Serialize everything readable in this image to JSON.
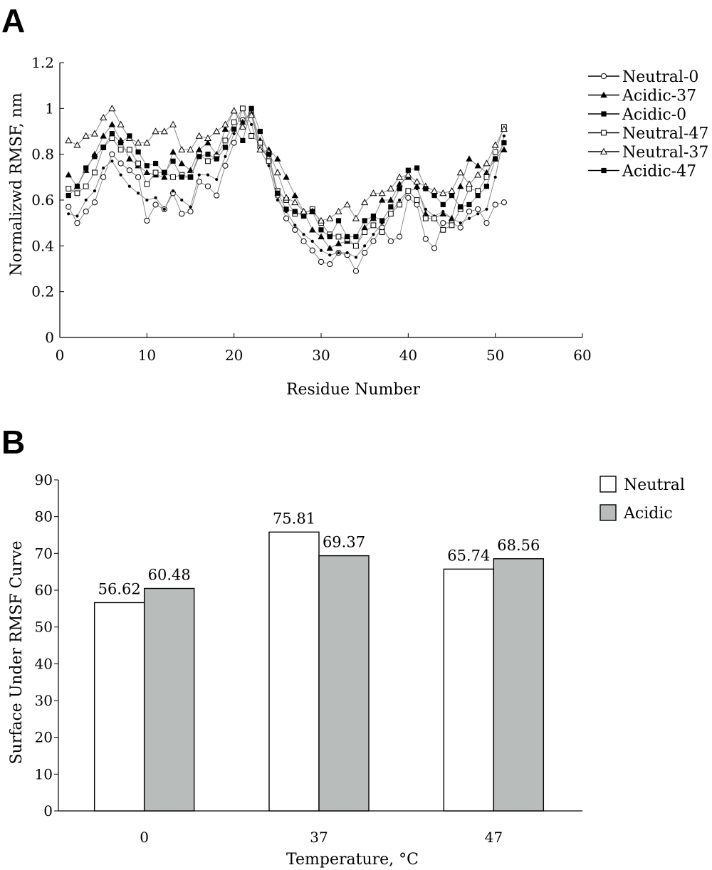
{
  "panels": {
    "a_label": "A",
    "b_label": "B"
  },
  "chart_data": [
    {
      "type": "line",
      "panel": "A",
      "xlabel": "Residue Number",
      "ylabel": "Normalizwd RMSF, nm",
      "xlim": [
        0,
        60
      ],
      "ylim": [
        0,
        1.2
      ],
      "x_ticks": [
        0,
        10,
        20,
        30,
        40,
        50,
        60
      ],
      "y_ticks": [
        0,
        0.2,
        0.4,
        0.6,
        0.8,
        1,
        1.2
      ],
      "y_tick_labels": [
        "0",
        "0.2",
        "0.4",
        "0.6",
        "0.8",
        "1",
        "1.2"
      ],
      "grid": false,
      "legend_position": "top-right",
      "x": [
        1,
        2,
        3,
        4,
        5,
        6,
        7,
        8,
        9,
        10,
        11,
        12,
        13,
        14,
        15,
        16,
        17,
        18,
        19,
        20,
        21,
        22,
        23,
        24,
        25,
        26,
        27,
        28,
        29,
        30,
        31,
        32,
        33,
        34,
        35,
        36,
        37,
        38,
        39,
        40,
        41,
        42,
        43,
        44,
        45,
        46,
        47,
        48,
        49,
        50,
        51
      ],
      "series": [
        {
          "name": "Neutral-0",
          "marker": "open-circle",
          "values": [
            0.57,
            0.5,
            0.55,
            0.59,
            0.7,
            0.8,
            0.76,
            0.73,
            0.7,
            0.51,
            0.58,
            0.56,
            0.63,
            0.54,
            0.55,
            0.68,
            0.66,
            0.62,
            0.75,
            0.85,
            0.95,
            0.98,
            0.83,
            0.78,
            0.62,
            0.52,
            0.47,
            0.42,
            0.38,
            0.33,
            0.32,
            0.37,
            0.36,
            0.29,
            0.37,
            0.42,
            0.48,
            0.42,
            0.44,
            0.61,
            0.58,
            0.43,
            0.39,
            0.5,
            0.5,
            0.48,
            0.55,
            0.56,
            0.5,
            0.58,
            0.59
          ]
        },
        {
          "name": "Acidic-37",
          "marker": "filled-triangle",
          "values": [
            0.71,
            0.66,
            0.73,
            0.8,
            0.88,
            0.93,
            0.86,
            0.78,
            0.75,
            0.72,
            0.71,
            0.7,
            0.81,
            0.76,
            0.73,
            0.82,
            0.85,
            0.8,
            0.91,
            0.99,
            0.94,
            0.98,
            0.86,
            0.82,
            0.78,
            0.7,
            0.62,
            0.55,
            0.47,
            0.44,
            0.39,
            0.41,
            0.42,
            0.4,
            0.48,
            0.52,
            0.6,
            0.6,
            0.67,
            0.7,
            0.66,
            0.54,
            0.52,
            0.54,
            0.52,
            0.66,
            0.78,
            0.75,
            0.72,
            0.78,
            0.82
          ]
        },
        {
          "name": "Acidic-0",
          "marker": "small-dot",
          "values": [
            0.54,
            0.53,
            0.6,
            0.64,
            0.74,
            0.77,
            0.71,
            0.66,
            0.63,
            0.6,
            0.61,
            0.56,
            0.64,
            0.6,
            0.57,
            0.71,
            0.71,
            0.69,
            0.79,
            0.89,
            1.0,
            0.93,
            0.82,
            0.75,
            0.6,
            0.55,
            0.49,
            0.45,
            0.42,
            0.38,
            0.36,
            0.37,
            0.37,
            0.35,
            0.4,
            0.45,
            0.5,
            0.54,
            0.6,
            0.64,
            0.65,
            0.56,
            0.53,
            0.55,
            0.52,
            0.5,
            0.52,
            0.54,
            0.56,
            0.7,
            0.88
          ]
        },
        {
          "name": "Neutral-47",
          "marker": "open-square",
          "values": [
            0.65,
            0.63,
            0.66,
            0.72,
            0.83,
            0.87,
            0.82,
            0.82,
            0.76,
            0.67,
            0.72,
            0.72,
            0.7,
            0.71,
            0.7,
            0.8,
            0.77,
            0.79,
            0.86,
            0.94,
            1.0,
            0.88,
            0.85,
            0.77,
            0.64,
            0.6,
            0.54,
            0.54,
            0.56,
            0.5,
            0.45,
            0.44,
            0.43,
            0.4,
            0.46,
            0.49,
            0.46,
            0.54,
            0.58,
            0.64,
            0.6,
            0.52,
            0.52,
            0.47,
            0.49,
            0.56,
            0.65,
            0.64,
            0.7,
            0.81,
            0.92
          ]
        },
        {
          "name": "Neutral-37",
          "marker": "open-triangle",
          "values": [
            0.86,
            0.84,
            0.88,
            0.89,
            0.96,
            1.0,
            0.93,
            0.87,
            0.85,
            0.85,
            0.9,
            0.9,
            0.93,
            0.82,
            0.82,
            0.88,
            0.87,
            0.9,
            0.93,
            0.99,
            0.92,
            0.97,
            0.82,
            0.81,
            0.72,
            0.61,
            0.59,
            0.55,
            0.55,
            0.51,
            0.52,
            0.55,
            0.58,
            0.52,
            0.59,
            0.63,
            0.63,
            0.65,
            0.7,
            0.71,
            0.68,
            0.66,
            0.64,
            0.63,
            0.64,
            0.72,
            0.67,
            0.71,
            0.76,
            0.84,
            0.91
          ]
        },
        {
          "name": "Acidic-47",
          "marker": "filled-square",
          "values": [
            0.62,
            0.66,
            0.74,
            0.79,
            0.83,
            0.89,
            0.85,
            0.88,
            0.81,
            0.75,
            0.76,
            0.72,
            0.77,
            0.7,
            0.7,
            0.79,
            0.8,
            0.78,
            0.83,
            0.91,
            0.86,
            1.0,
            0.9,
            0.8,
            0.63,
            0.56,
            0.55,
            0.53,
            0.55,
            0.47,
            0.44,
            0.51,
            0.44,
            0.44,
            0.51,
            0.53,
            0.51,
            0.57,
            0.65,
            0.73,
            0.74,
            0.65,
            0.62,
            0.58,
            0.62,
            0.57,
            0.58,
            0.62,
            0.66,
            0.78,
            0.85
          ]
        }
      ]
    },
    {
      "type": "bar",
      "panel": "B",
      "xlabel": "Temperature, °C",
      "ylabel": "Surface Under RMSF Curve",
      "categories": [
        "0",
        "37",
        "47"
      ],
      "ylim": [
        0,
        90
      ],
      "y_ticks": [
        0,
        10,
        20,
        30,
        40,
        50,
        60,
        70,
        80,
        90
      ],
      "grid": false,
      "legend_position": "top-right",
      "series": [
        {
          "name": "Neutral",
          "color": "#ffffff",
          "values": [
            56.62,
            75.81,
            65.74
          ],
          "labels": [
            "56.62",
            "75.81",
            "65.74"
          ]
        },
        {
          "name": "Acidic",
          "color": "#b8bcbb",
          "values": [
            60.48,
            69.37,
            68.56
          ],
          "labels": [
            "60.48",
            "69.37",
            "68.56"
          ]
        }
      ]
    }
  ]
}
